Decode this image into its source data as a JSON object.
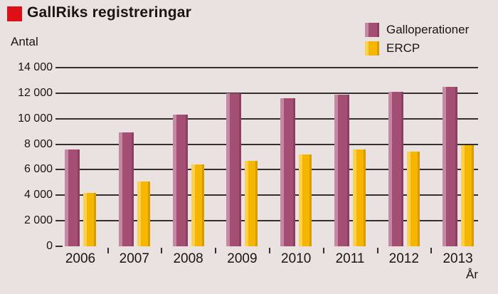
{
  "title": "GallRiks registreringar",
  "colors": {
    "background": "#e9e2e0",
    "title_square_red": "#dc1016",
    "grid": "#35302d",
    "text": "#181512"
  },
  "chart_data": {
    "type": "bar",
    "title": "GallRiks registreringar",
    "categories": [
      "2006",
      "2007",
      "2008",
      "2009",
      "2010",
      "2011",
      "2012",
      "2013"
    ],
    "series": [
      {
        "name": "Galloperationer",
        "color": "#a44e74",
        "color_light": "#c488a4",
        "color_dark": "#8b3f63",
        "values": [
          7600,
          8900,
          10300,
          12000,
          11600,
          11900,
          12100,
          12500
        ]
      },
      {
        "name": "ERCP",
        "color": "#f6b600",
        "color_light": "#fcd050",
        "color_dark": "#d79c00",
        "values": [
          4200,
          5100,
          6400,
          6700,
          7200,
          7600,
          7400,
          7900
        ]
      }
    ],
    "xlabel": "År",
    "ylabel": "Antal",
    "ylim": [
      0,
      14000
    ],
    "grid": true,
    "legend_position": "top-right",
    "yticks": [
      {
        "value": 0,
        "label": "0"
      },
      {
        "value": 2000,
        "label": "2 000"
      },
      {
        "value": 4000,
        "label": "4 000"
      },
      {
        "value": 6000,
        "label": "6 000"
      },
      {
        "value": 8000,
        "label": "8 000"
      },
      {
        "value": 10000,
        "label": "10 000"
      },
      {
        "value": 12000,
        "label": "12 000"
      },
      {
        "value": 14000,
        "label": "14 000"
      }
    ]
  }
}
